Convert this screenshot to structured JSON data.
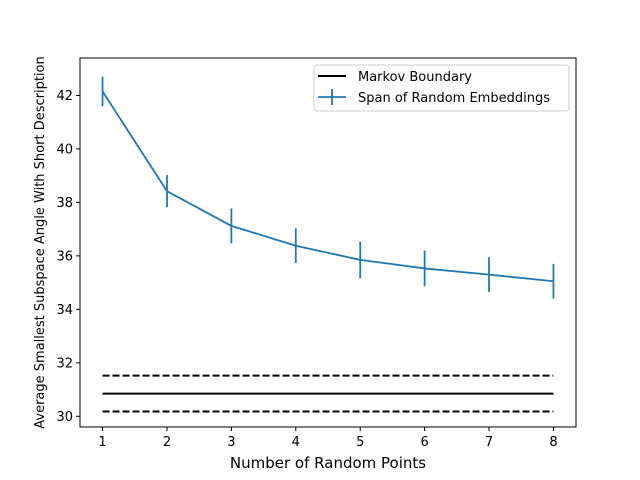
{
  "chart_data": {
    "type": "line",
    "xlabel": "Number of Random Points",
    "ylabel": "Average Smallest Subspace Angle With Short Description",
    "xlim": [
      0.65,
      8.35
    ],
    "ylim": [
      29.6,
      43.4
    ],
    "xticks": [
      1,
      2,
      3,
      4,
      5,
      6,
      7,
      8
    ],
    "yticks": [
      30,
      32,
      34,
      36,
      38,
      40,
      42
    ],
    "legend_position": "top-right",
    "grid": false,
    "series": [
      {
        "name": "Span of Random Embeddings",
        "color": "#1f77b4",
        "x": [
          1,
          2,
          3,
          4,
          5,
          6,
          7,
          8
        ],
        "y": [
          42.15,
          38.42,
          37.12,
          36.38,
          35.85,
          35.53,
          35.3,
          35.05
        ],
        "err": [
          0.55,
          0.6,
          0.65,
          0.65,
          0.68,
          0.67,
          0.65,
          0.65
        ]
      }
    ],
    "reference_lines": [
      {
        "name": "Markov Boundary",
        "value": 30.85,
        "style": "solid",
        "color": "#000000",
        "x_range": [
          1,
          8
        ]
      },
      {
        "value": 31.52,
        "style": "dashed",
        "color": "#000000",
        "x_range": [
          1,
          8
        ]
      },
      {
        "value": 30.18,
        "style": "dashed",
        "color": "#000000",
        "x_range": [
          1,
          8
        ]
      }
    ]
  }
}
